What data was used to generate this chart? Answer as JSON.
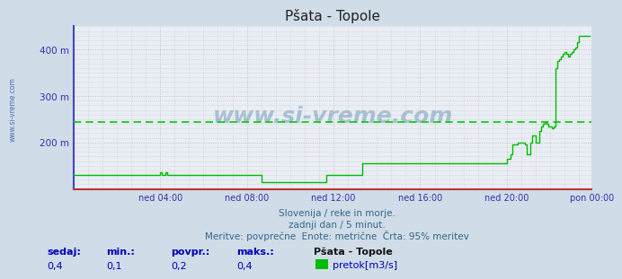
{
  "title": "Pšata - Topole",
  "bg_color": "#d0dce8",
  "plot_bg_color": "#e8eef4",
  "line_color": "#00bb00",
  "avg_line_color": "#00cc00",
  "avg_line_value": 245,
  "border_color_left": "#4444bb",
  "border_color_bottom": "#bb3333",
  "y_label_color": "#3333aa",
  "x_label_color": "#3333aa",
  "title_color": "#222222",
  "watermark_text": "www.si-vreme.com",
  "watermark_color": "#1a5a8a",
  "subtitle_color": "#336688",
  "subtitle_lines": [
    "Slovenija / reke in morje.",
    "zadnji dan / 5 minut.",
    "Meritve: povprečne  Enote: metrične  Črta: 95% meritev"
  ],
  "xlabel_ticks": [
    "ned 04:00",
    "ned 08:00",
    "ned 12:00",
    "ned 16:00",
    "ned 20:00",
    "pon 00:00"
  ],
  "ytick_labels": [
    "200 m",
    "300 m",
    "400 m"
  ],
  "ytick_values": [
    200,
    300,
    400
  ],
  "ylim": [
    100,
    450
  ],
  "xlim": [
    0,
    287
  ],
  "xtick_positions": [
    48,
    96,
    144,
    192,
    240,
    287
  ],
  "footer_labels": [
    "sedaj:",
    "min.:",
    "povpr.:",
    "maks.:"
  ],
  "footer_values": [
    "0,4",
    "0,1",
    "0,2",
    "0,4"
  ],
  "footer_series_name": "Pšata - Topole",
  "footer_legend_label": "pretok[m3/s]",
  "footer_color": "#0000bb",
  "minor_grid_color": "#ccbbbb",
  "major_grid_color": "#bbbbbb",
  "data_y": [
    130,
    130,
    130,
    130,
    130,
    130,
    130,
    130,
    130,
    130,
    130,
    130,
    130,
    130,
    130,
    130,
    130,
    130,
    130,
    130,
    130,
    130,
    130,
    130,
    130,
    130,
    130,
    130,
    130,
    130,
    130,
    130,
    130,
    130,
    130,
    130,
    130,
    130,
    130,
    130,
    130,
    130,
    130,
    130,
    130,
    130,
    130,
    130,
    135,
    130,
    130,
    135,
    130,
    130,
    130,
    130,
    130,
    130,
    130,
    130,
    130,
    130,
    130,
    130,
    130,
    130,
    130,
    130,
    130,
    130,
    130,
    130,
    130,
    130,
    130,
    130,
    130,
    130,
    130,
    130,
    130,
    130,
    130,
    130,
    130,
    130,
    130,
    130,
    130,
    130,
    130,
    130,
    130,
    130,
    130,
    130,
    130,
    130,
    130,
    130,
    130,
    130,
    130,
    130,
    115,
    115,
    115,
    115,
    115,
    115,
    115,
    115,
    115,
    115,
    115,
    115,
    115,
    115,
    115,
    115,
    115,
    115,
    115,
    115,
    115,
    115,
    115,
    115,
    115,
    115,
    115,
    115,
    115,
    115,
    115,
    115,
    115,
    115,
    115,
    115,
    130,
    130,
    130,
    130,
    130,
    130,
    130,
    130,
    130,
    130,
    130,
    130,
    130,
    130,
    130,
    130,
    130,
    130,
    130,
    130,
    155,
    155,
    155,
    155,
    155,
    155,
    155,
    155,
    155,
    155,
    155,
    155,
    155,
    155,
    155,
    155,
    155,
    155,
    155,
    155,
    155,
    155,
    155,
    155,
    155,
    155,
    155,
    155,
    155,
    155,
    155,
    155,
    155,
    155,
    155,
    155,
    155,
    155,
    155,
    155,
    155,
    155,
    155,
    155,
    155,
    155,
    155,
    155,
    155,
    155,
    155,
    155,
    155,
    155,
    155,
    155,
    155,
    155,
    155,
    155,
    155,
    155,
    155,
    155,
    155,
    155,
    155,
    155,
    155,
    155,
    155,
    155,
    155,
    155,
    155,
    155,
    155,
    155,
    155,
    155,
    165,
    165,
    175,
    195,
    195,
    195,
    200,
    200,
    200,
    200,
    195,
    175,
    175,
    200,
    215,
    215,
    200,
    200,
    225,
    235,
    240,
    245,
    240,
    235,
    235,
    230,
    235,
    360,
    375,
    380,
    385,
    390,
    395,
    390,
    385,
    390,
    395,
    400,
    405,
    415,
    430,
    430,
    430,
    430,
    430,
    430,
    430
  ]
}
